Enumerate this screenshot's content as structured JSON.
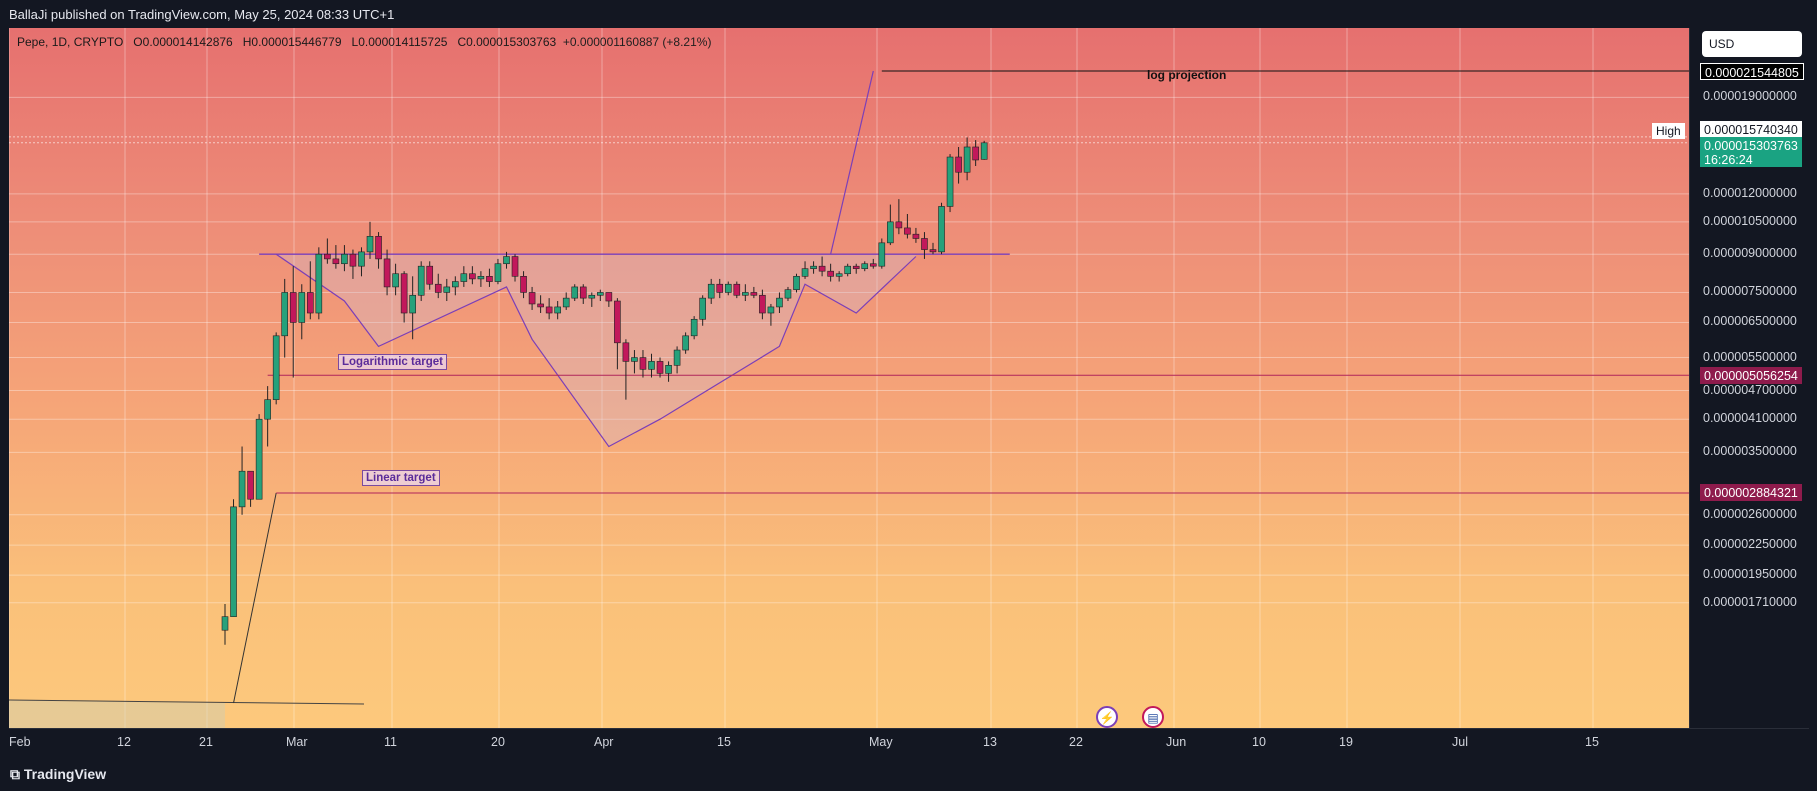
{
  "header": {
    "published": "BallaJi published on TradingView.com, May 25, 2024 08:33 UTC+1"
  },
  "legend": {
    "symbol": "Pepe, 1D, CRYPTO",
    "o_label": "O",
    "o": "0.000014142876",
    "h_label": "H",
    "h": "0.000015446779",
    "l_label": "L",
    "l": "0.000014115725",
    "c_label": "C",
    "c": "0.000015303763",
    "change": "+0.000001160887 (+8.21%)"
  },
  "currency": "USD",
  "annotations": {
    "log_projection": "log projection",
    "log_target": "Logarithmic target",
    "linear_target": "Linear target",
    "high_label": "High"
  },
  "price_tags": {
    "log_projection": "0.000021544805",
    "high": "0.000015740340",
    "current": "0.000015303763",
    "countdown": "16:26:24",
    "log_target": "0.000005056254",
    "linear_target": "0.000002884321"
  },
  "colors": {
    "up": "#26a17b",
    "down": "#c2185b",
    "target_line": "#b0245a",
    "pattern": "#7b3fb8",
    "tag_dark": "#000000",
    "tag_target": "#8e1b4c",
    "tag_current": "#1aa382"
  },
  "y_ticks": [
    "0.000019000000",
    "0.000012000000",
    "0.000010500000",
    "0.000009000000",
    "0.000007500000",
    "0.000006500000",
    "0.000005500000",
    "0.000004700000",
    "0.000004100000",
    "0.000003500000",
    "0.000002600000",
    "0.000002250000",
    "0.000001950000",
    "0.000001710000"
  ],
  "x_ticks": [
    "Feb",
    "12",
    "21",
    "Mar",
    "11",
    "20",
    "Apr",
    "15",
    "May",
    "13",
    "22",
    "Jun",
    "10",
    "19",
    "Jul",
    "15"
  ],
  "footer": {
    "brand": "TradingView"
  },
  "chart_data": {
    "type": "candlestick",
    "symbol": "Pepe",
    "interval": "1D",
    "y_scale": "log",
    "ylim": [
      1.6e-06,
      2.6e-05
    ],
    "horizontal_levels": [
      {
        "name": "log projection",
        "value": 2.1544805e-05
      },
      {
        "name": "Logarithmic target",
        "value": 5.056254e-06
      },
      {
        "name": "Linear target",
        "value": 2.884321e-06
      }
    ],
    "candles": [
      [
        "Feb 26",
        1.5e-06,
        1.7e-06,
        1.4e-06,
        1.6e-06
      ],
      [
        "Feb 27",
        1.6e-06,
        2.8e-06,
        1.6e-06,
        2.7e-06
      ],
      [
        "Feb 28",
        2.7e-06,
        3.6e-06,
        2.6e-06,
        3.2e-06
      ],
      [
        "Feb 29",
        3.2e-06,
        3.2e-06,
        2.7e-06,
        2.8e-06
      ],
      [
        "Mar 01",
        2.8e-06,
        4.2e-06,
        2.8e-06,
        4.1e-06
      ],
      [
        "Mar 02",
        4.1e-06,
        4.8e-06,
        3.6e-06,
        4.5e-06
      ],
      [
        "Mar 03",
        4.5e-06,
        6.2e-06,
        4.4e-06,
        6.1e-06
      ],
      [
        "Mar 04",
        6.1e-06,
        8e-06,
        5.5e-06,
        7.5e-06
      ],
      [
        "Mar 05",
        7.5e-06,
        8.5e-06,
        5e-06,
        6.5e-06
      ],
      [
        "Mar 06",
        6.5e-06,
        7.8e-06,
        6e-06,
        7.5e-06
      ],
      [
        "Mar 07",
        7.5e-06,
        8.7e-06,
        6.6e-06,
        6.8e-06
      ],
      [
        "Mar 08",
        6.8e-06,
        9.3e-06,
        6.6e-06,
        9e-06
      ],
      [
        "Mar 09",
        9e-06,
        9.7e-06,
        8.6e-06,
        8.8e-06
      ],
      [
        "Mar 10",
        8.8e-06,
        9.4e-06,
        8.4e-06,
        8.6e-06
      ],
      [
        "Mar 11",
        8.6e-06,
        9.4e-06,
        8.3e-06,
        9e-06
      ],
      [
        "Mar 12",
        9e-06,
        9.2e-06,
        8e-06,
        8.5e-06
      ],
      [
        "Mar 13",
        8.5e-06,
        9.3e-06,
        8.1e-06,
        9.1e-06
      ],
      [
        "Mar 14",
        9.1e-06,
        1.05e-05,
        8.8e-06,
        9.8e-06
      ],
      [
        "Mar 15",
        9.8e-06,
        1e-05,
        8.4e-06,
        8.8e-06
      ],
      [
        "Mar 16",
        8.8e-06,
        9.2e-06,
        7.4e-06,
        7.7e-06
      ],
      [
        "Mar 17",
        7.7e-06,
        8.6e-06,
        7.4e-06,
        8.2e-06
      ],
      [
        "Mar 18",
        8.2e-06,
        8.3e-06,
        6.5e-06,
        6.8e-06
      ],
      [
        "Mar 19",
        6.8e-06,
        8.1e-06,
        6e-06,
        7.4e-06
      ],
      [
        "Mar 20",
        7.4e-06,
        8.7e-06,
        7.2e-06,
        8.5e-06
      ],
      [
        "Mar 21",
        8.5e-06,
        8.7e-06,
        7.6e-06,
        7.8e-06
      ],
      [
        "Mar 22",
        7.8e-06,
        8.2e-06,
        7.3e-06,
        7.5e-06
      ],
      [
        "Mar 23",
        7.5e-06,
        8e-06,
        7.2e-06,
        7.7e-06
      ],
      [
        "Mar 24",
        7.7e-06,
        8.1e-06,
        7.4e-06,
        7.9e-06
      ],
      [
        "Mar 25",
        7.9e-06,
        8.5e-06,
        7.7e-06,
        8.2e-06
      ],
      [
        "Mar 26",
        8.2e-06,
        8.5e-06,
        7.8e-06,
        8e-06
      ],
      [
        "Mar 27",
        8e-06,
        8.3e-06,
        7.7e-06,
        8.1e-06
      ],
      [
        "Mar 28",
        8.1e-06,
        8.4e-06,
        7.7e-06,
        7.9e-06
      ],
      [
        "Mar 29",
        7.9e-06,
        8.8e-06,
        7.8e-06,
        8.6e-06
      ],
      [
        "Mar 30",
        8.6e-06,
        9.1e-06,
        8.4e-06,
        8.9e-06
      ],
      [
        "Mar 31",
        8.9e-06,
        9e-06,
        7.9e-06,
        8.1e-06
      ],
      [
        "Apr 01",
        8.1e-06,
        8.3e-06,
        7.3e-06,
        7.5e-06
      ],
      [
        "Apr 02",
        7.5e-06,
        7.7e-06,
        6.9e-06,
        7.1e-06
      ],
      [
        "Apr 03",
        7.1e-06,
        7.4e-06,
        6.8e-06,
        7e-06
      ],
      [
        "Apr 04",
        7e-06,
        7.3e-06,
        6.6e-06,
        6.8e-06
      ],
      [
        "Apr 05",
        6.8e-06,
        7.2e-06,
        6.6e-06,
        7e-06
      ],
      [
        "Apr 06",
        7e-06,
        7.5e-06,
        6.9e-06,
        7.3e-06
      ],
      [
        "Apr 07",
        7.3e-06,
        7.8e-06,
        7.2e-06,
        7.7e-06
      ],
      [
        "Apr 08",
        7.7e-06,
        7.8e-06,
        7.1e-06,
        7.3e-06
      ],
      [
        "Apr 09",
        7.3e-06,
        7.5e-06,
        7e-06,
        7.4e-06
      ],
      [
        "Apr 10",
        7.4e-06,
        7.6e-06,
        7.2e-06,
        7.5e-06
      ],
      [
        "Apr 11",
        7.5e-06,
        7.5e-06,
        7e-06,
        7.2e-06
      ],
      [
        "Apr 12",
        7.2e-06,
        7.3e-06,
        5.2e-06,
        5.9e-06
      ],
      [
        "Apr 13",
        5.9e-06,
        6e-06,
        4.5e-06,
        5.4e-06
      ],
      [
        "Apr 14",
        5.4e-06,
        5.7e-06,
        5.1e-06,
        5.5e-06
      ],
      [
        "Apr 15",
        5.5e-06,
        5.7e-06,
        5e-06,
        5.2e-06
      ],
      [
        "Apr 16",
        5.2e-06,
        5.6e-06,
        5e-06,
        5.4e-06
      ],
      [
        "Apr 17",
        5.4e-06,
        5.5e-06,
        5e-06,
        5.1e-06
      ],
      [
        "Apr 18",
        5.1e-06,
        5.4e-06,
        4.9e-06,
        5.3e-06
      ],
      [
        "Apr 19",
        5.3e-06,
        5.8e-06,
        5.1e-06,
        5.7e-06
      ],
      [
        "Apr 20",
        5.7e-06,
        6.2e-06,
        5.6e-06,
        6.1e-06
      ],
      [
        "Apr 21",
        6.1e-06,
        6.7e-06,
        6e-06,
        6.6e-06
      ],
      [
        "Apr 22",
        6.6e-06,
        7.4e-06,
        6.4e-06,
        7.3e-06
      ],
      [
        "Apr 23",
        7.3e-06,
        8e-06,
        7.1e-06,
        7.8e-06
      ],
      [
        "Apr 24",
        7.8e-06,
        8e-06,
        7.3e-06,
        7.5e-06
      ],
      [
        "Apr 25",
        7.5e-06,
        7.9e-06,
        7.4e-06,
        7.8e-06
      ],
      [
        "Apr 26",
        7.8e-06,
        7.9e-06,
        7.3e-06,
        7.4e-06
      ],
      [
        "Apr 27",
        7.4e-06,
        7.8e-06,
        7.2e-06,
        7.5e-06
      ],
      [
        "Apr 28",
        7.5e-06,
        7.7e-06,
        7.3e-06,
        7.4e-06
      ],
      [
        "Apr 29",
        7.4e-06,
        7.6e-06,
        6.6e-06,
        6.8e-06
      ],
      [
        "Apr 30",
        6.8e-06,
        7.1e-06,
        6.4e-06,
        7e-06
      ],
      [
        "May 01",
        7e-06,
        7.5e-06,
        6.8e-06,
        7.3e-06
      ],
      [
        "May 02",
        7.3e-06,
        7.7e-06,
        7.2e-06,
        7.6e-06
      ],
      [
        "May 03",
        7.6e-06,
        8.2e-06,
        7.5e-06,
        8.1e-06
      ],
      [
        "May 04",
        8.1e-06,
        8.7e-06,
        8e-06,
        8.4e-06
      ],
      [
        "May 05",
        8.4e-06,
        8.7e-06,
        8.2e-06,
        8.5e-06
      ],
      [
        "May 06",
        8.5e-06,
        8.9e-06,
        8.1e-06,
        8.3e-06
      ],
      [
        "May 07",
        8.3e-06,
        8.6e-06,
        7.9e-06,
        8.1e-06
      ],
      [
        "May 08",
        8.1e-06,
        8.3e-06,
        7.9e-06,
        8.2e-06
      ],
      [
        "May 09",
        8.2e-06,
        8.6e-06,
        8.1e-06,
        8.5e-06
      ],
      [
        "May 10",
        8.5e-06,
        8.6e-06,
        8.2e-06,
        8.4e-06
      ],
      [
        "May 11",
        8.4e-06,
        8.7e-06,
        8.3e-06,
        8.6e-06
      ],
      [
        "May 12",
        8.6e-06,
        8.8e-06,
        8.4e-06,
        8.5e-06
      ],
      [
        "May 13",
        8.5e-06,
        9.7e-06,
        8.4e-06,
        9.5e-06
      ],
      [
        "May 14",
        9.5e-06,
        1.14e-05,
        9.4e-06,
        1.05e-05
      ],
      [
        "May 15",
        1.05e-05,
        1.17e-05,
        9.9e-06,
        1.02e-05
      ],
      [
        "May 16",
        1.02e-05,
        1.09e-05,
        9.7e-06,
        9.9e-06
      ],
      [
        "May 17",
        9.9e-06,
        1.02e-05,
        9.5e-06,
        9.7e-06
      ],
      [
        "May 18",
        9.7e-06,
        1e-05,
        8.8e-06,
        9.2e-06
      ],
      [
        "May 19",
        9.2e-06,
        9.5e-06,
        9e-06,
        9.1e-06
      ],
      [
        "May 20",
        9.1e-06,
        1.15e-05,
        9e-06,
        1.13e-05
      ],
      [
        "May 21",
        1.13e-05,
        1.45e-05,
        1.1e-05,
        1.43e-05
      ],
      [
        "May 22",
        1.43e-05,
        1.5e-05,
        1.26e-05,
        1.33e-05
      ],
      [
        "May 23",
        1.33e-05,
        1.57e-05,
        1.28e-05,
        1.5e-05
      ],
      [
        "May 24",
        1.5e-05,
        1.55e-05,
        1.37e-05,
        1.41e-05
      ],
      [
        "May 25",
        1.4142876e-05,
        1.5446779e-05,
        1.4115725e-05,
        1.5303763e-05
      ]
    ]
  }
}
